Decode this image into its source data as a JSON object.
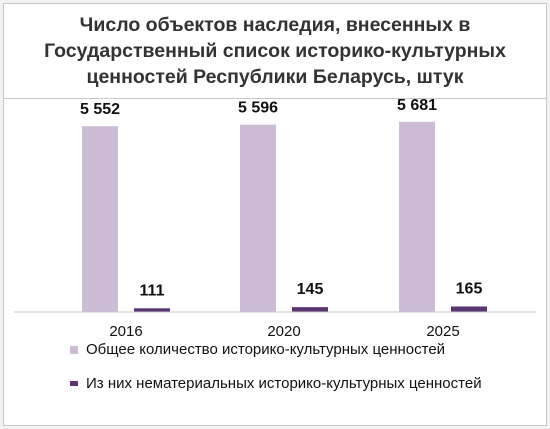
{
  "chart_data": {
    "type": "bar",
    "title": "Число объектов наследия, внесенных в Государственный список историко-культурных ценностей Республики Беларусь, штук",
    "categories": [
      "2016",
      "2020",
      "2025"
    ],
    "series": [
      {
        "name": "Общее количество историко-культурных ценностей",
        "values": [
          5552,
          5596,
          5681
        ],
        "labels": [
          "5 552",
          "5 596",
          "5 681"
        ],
        "color": "#cdbcd6"
      },
      {
        "name": "Из них нематериальных историко-культурных ценностей",
        "values": [
          111,
          145,
          165
        ],
        "labels": [
          "111",
          "145",
          "165"
        ],
        "color": "#5a3572"
      }
    ],
    "ylim": [
      0,
      6000
    ],
    "grid": false,
    "legend_position": "bottom"
  }
}
